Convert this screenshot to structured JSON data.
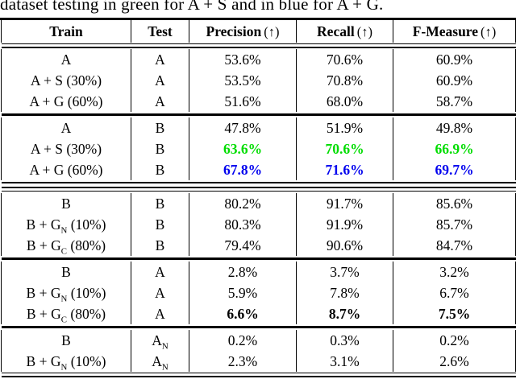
{
  "caption": "dataset testing in green for A + S and in blue for A + G.",
  "colors": {
    "green": "#00dd00",
    "blue": "#0000ee",
    "text": "#000000"
  },
  "table": {
    "headers": [
      {
        "label": "Train",
        "suffix": ""
      },
      {
        "label": "Test",
        "suffix": ""
      },
      {
        "label": "Precision",
        "suffix": "(↑)"
      },
      {
        "label": "Recall",
        "suffix": "(↑)"
      },
      {
        "label": "F-Measure",
        "suffix": "(↑)"
      }
    ],
    "blocks": [
      {
        "rule_after": "single",
        "rows": [
          {
            "train": [
              "A"
            ],
            "test": [
              "A"
            ],
            "metrics": [
              "53.6%",
              "70.6%",
              "60.9%"
            ],
            "color": null,
            "bold": false
          },
          {
            "train": [
              "A + S (30%)"
            ],
            "test": [
              "A"
            ],
            "metrics": [
              "53.5%",
              "70.8%",
              "60.9%"
            ],
            "color": null,
            "bold": false
          },
          {
            "train": [
              "A + G (60%)"
            ],
            "test": [
              "A"
            ],
            "metrics": [
              "51.6%",
              "68.0%",
              "58.7%"
            ],
            "color": null,
            "bold": false
          }
        ]
      },
      {
        "rule_after": "heavy-double",
        "rows": [
          {
            "train": [
              "A"
            ],
            "test": [
              "B"
            ],
            "metrics": [
              "47.8%",
              "51.9%",
              "49.8%"
            ],
            "color": null,
            "bold": false
          },
          {
            "train": [
              "A + S (30%)"
            ],
            "test": [
              "B"
            ],
            "metrics": [
              "63.6%",
              "70.6%",
              "66.9%"
            ],
            "color": "green",
            "bold": true
          },
          {
            "train": [
              "A + G (60%)"
            ],
            "test": [
              "B"
            ],
            "metrics": [
              "67.8%",
              "71.6%",
              "69.7%"
            ],
            "color": "blue",
            "bold": true
          }
        ]
      },
      {
        "rule_after": "single",
        "rows": [
          {
            "train": [
              "B"
            ],
            "test": [
              "B"
            ],
            "metrics": [
              "80.2%",
              "91.7%",
              "85.6%"
            ],
            "color": null,
            "bold": false
          },
          {
            "train": [
              "B + G",
              {
                "sub": "N"
              },
              " (10%)"
            ],
            "test": [
              "B"
            ],
            "metrics": [
              "80.3%",
              "91.9%",
              "85.7%"
            ],
            "color": null,
            "bold": false
          },
          {
            "train": [
              "B + G",
              {
                "sub": "C"
              },
              " (80%)"
            ],
            "test": [
              "B"
            ],
            "metrics": [
              "79.4%",
              "90.6%",
              "84.7%"
            ],
            "color": null,
            "bold": false
          }
        ]
      },
      {
        "rule_after": "single",
        "rows": [
          {
            "train": [
              "B"
            ],
            "test": [
              "A"
            ],
            "metrics": [
              "2.8%",
              "3.7%",
              "3.2%"
            ],
            "color": null,
            "bold": false
          },
          {
            "train": [
              "B + G",
              {
                "sub": "N"
              },
              " (10%)"
            ],
            "test": [
              "A"
            ],
            "metrics": [
              "5.9%",
              "7.8%",
              "6.7%"
            ],
            "color": null,
            "bold": false
          },
          {
            "train": [
              "B + G",
              {
                "sub": "C"
              },
              " (80%)"
            ],
            "test": [
              "A"
            ],
            "metrics": [
              "6.6%",
              "8.7%",
              "7.5%"
            ],
            "color": null,
            "bold": true
          }
        ]
      },
      {
        "rule_after": "bottom",
        "rows": [
          {
            "train": [
              "B"
            ],
            "test": [
              "A",
              {
                "sub": "N"
              }
            ],
            "metrics": [
              "0.2%",
              "0.3%",
              "0.2%"
            ],
            "color": null,
            "bold": false
          },
          {
            "train": [
              "B + G",
              {
                "sub": "N"
              },
              " (10%)"
            ],
            "test": [
              "A",
              {
                "sub": "N"
              }
            ],
            "metrics": [
              "2.3%",
              "3.1%",
              "2.6%"
            ],
            "color": null,
            "bold": false
          }
        ]
      }
    ]
  }
}
